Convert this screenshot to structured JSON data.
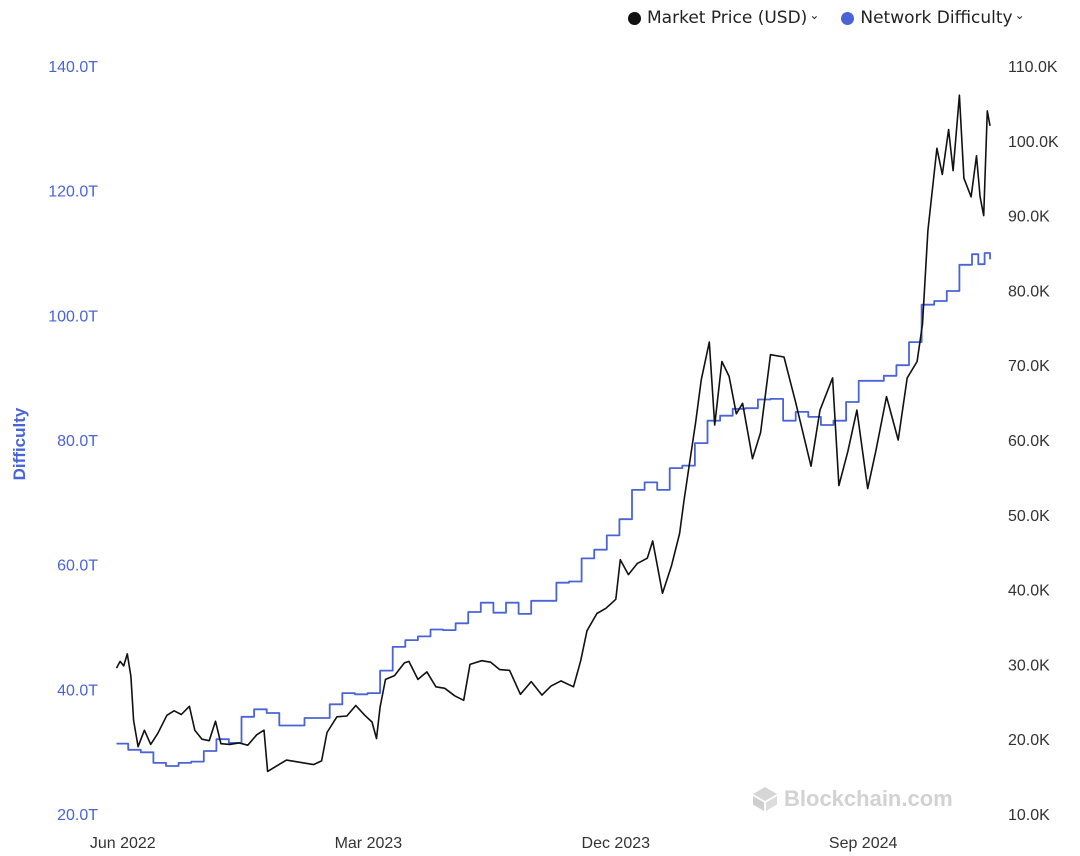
{
  "legend": {
    "price_label": "Market Price (USD)",
    "difficulty_label": "Network Difficulty",
    "chevron": "⌄"
  },
  "watermark": {
    "text": "Blockchain.com",
    "icon": "blockchain-logo-icon"
  },
  "colors": {
    "difficulty": "#4a64d8",
    "price": "#111111",
    "grid": "#ffffff",
    "left_axis_text": "#4a64d8",
    "right_axis_text": "#333333"
  },
  "chart_data": {
    "type": "line",
    "title": "",
    "xlabel": "",
    "ylabel": "Difficulty",
    "ylabel_right": "",
    "x_ticks": [
      "Jun 2022",
      "Mar 2023",
      "Dec 2023",
      "Sep 2024"
    ],
    "x_tick_dates": [
      "2022-06-01",
      "2023-03-01",
      "2023-12-01",
      "2024-09-01"
    ],
    "x_range": [
      "2022-05-20",
      "2025-01-20"
    ],
    "y_left": {
      "ticks": [
        "20.0T",
        "40.0T",
        "60.0T",
        "80.0T",
        "100.0T",
        "120.0T",
        "140.0T"
      ],
      "range": [
        20,
        140
      ],
      "unit": "T"
    },
    "y_right": {
      "ticks": [
        "10.0K",
        "20.0K",
        "30.0K",
        "40.0K",
        "50.0K",
        "60.0K",
        "70.0K",
        "80.0K",
        "90.0K",
        "100.0K",
        "110.0K"
      ],
      "range": [
        10,
        110
      ],
      "unit": "K"
    },
    "legend_position": "top-right",
    "grid": false,
    "series": [
      {
        "name": "Network Difficulty",
        "axis": "left",
        "step": true,
        "points": [
          [
            "2022-05-25",
            31.3
          ],
          [
            "2022-06-07",
            30.3
          ],
          [
            "2022-06-21",
            29.9
          ],
          [
            "2022-07-05",
            28.2
          ],
          [
            "2022-07-19",
            27.7
          ],
          [
            "2022-08-02",
            28.2
          ],
          [
            "2022-08-16",
            28.4
          ],
          [
            "2022-08-30",
            30.1
          ],
          [
            "2022-09-13",
            32.0
          ],
          [
            "2022-09-27",
            31.4
          ],
          [
            "2022-10-11",
            35.6
          ],
          [
            "2022-10-25",
            36.8
          ],
          [
            "2022-11-08",
            36.2
          ],
          [
            "2022-11-22",
            34.2
          ],
          [
            "2022-12-06",
            34.2
          ],
          [
            "2022-12-20",
            35.4
          ],
          [
            "2023-01-03",
            35.4
          ],
          [
            "2023-01-17",
            37.6
          ],
          [
            "2023-01-31",
            39.4
          ],
          [
            "2023-02-14",
            39.2
          ],
          [
            "2023-02-28",
            39.4
          ],
          [
            "2023-03-14",
            43.0
          ],
          [
            "2023-03-28",
            46.8
          ],
          [
            "2023-04-11",
            47.9
          ],
          [
            "2023-04-25",
            48.5
          ],
          [
            "2023-05-09",
            49.6
          ],
          [
            "2023-05-23",
            49.5
          ],
          [
            "2023-06-06",
            50.6
          ],
          [
            "2023-06-20",
            52.4
          ],
          [
            "2023-07-04",
            53.9
          ],
          [
            "2023-07-18",
            52.3
          ],
          [
            "2023-08-01",
            53.9
          ],
          [
            "2023-08-15",
            52.1
          ],
          [
            "2023-08-29",
            54.2
          ],
          [
            "2023-09-12",
            54.2
          ],
          [
            "2023-09-26",
            57.1
          ],
          [
            "2023-10-10",
            57.3
          ],
          [
            "2023-10-24",
            61.0
          ],
          [
            "2023-11-07",
            62.4
          ],
          [
            "2023-11-21",
            64.7
          ],
          [
            "2023-12-05",
            67.3
          ],
          [
            "2023-12-19",
            72.0
          ],
          [
            "2024-01-02",
            73.2
          ],
          [
            "2024-01-16",
            72.0
          ],
          [
            "2024-01-30",
            75.5
          ],
          [
            "2024-02-13",
            75.9
          ],
          [
            "2024-02-27",
            79.5
          ],
          [
            "2024-03-12",
            83.1
          ],
          [
            "2024-03-26",
            83.9
          ],
          [
            "2024-04-09",
            85.0
          ],
          [
            "2024-04-23",
            85.1
          ],
          [
            "2024-05-07",
            86.5
          ],
          [
            "2024-05-21",
            86.6
          ],
          [
            "2024-06-04",
            83.1
          ],
          [
            "2024-06-18",
            84.5
          ],
          [
            "2024-07-02",
            83.7
          ],
          [
            "2024-07-16",
            82.4
          ],
          [
            "2024-07-30",
            83.1
          ],
          [
            "2024-08-13",
            86.1
          ],
          [
            "2024-08-27",
            89.5
          ],
          [
            "2024-09-10",
            89.5
          ],
          [
            "2024-09-24",
            90.3
          ],
          [
            "2024-10-08",
            92.0
          ],
          [
            "2024-10-22",
            95.7
          ],
          [
            "2024-11-05",
            101.7
          ],
          [
            "2024-11-19",
            102.3
          ],
          [
            "2024-12-03",
            103.9
          ],
          [
            "2024-12-17",
            108.1
          ],
          [
            "2024-12-31",
            109.8
          ],
          [
            "2025-01-07",
            108.2
          ],
          [
            "2025-01-14",
            110.0
          ],
          [
            "2025-01-20",
            109.0
          ]
        ]
      },
      {
        "name": "Market Price (USD)",
        "axis": "right",
        "step": false,
        "points": [
          [
            "2022-05-25",
            29.5
          ],
          [
            "2022-05-29",
            30.4
          ],
          [
            "2022-06-02",
            29.8
          ],
          [
            "2022-06-06",
            31.4
          ],
          [
            "2022-06-10",
            28.4
          ],
          [
            "2022-06-13",
            22.5
          ],
          [
            "2022-06-18",
            19.0
          ],
          [
            "2022-06-25",
            21.2
          ],
          [
            "2022-07-02",
            19.3
          ],
          [
            "2022-07-10",
            20.8
          ],
          [
            "2022-07-20",
            23.2
          ],
          [
            "2022-07-28",
            23.8
          ],
          [
            "2022-08-05",
            23.3
          ],
          [
            "2022-08-14",
            24.4
          ],
          [
            "2022-08-20",
            21.2
          ],
          [
            "2022-08-28",
            20.0
          ],
          [
            "2022-09-05",
            19.8
          ],
          [
            "2022-09-12",
            22.4
          ],
          [
            "2022-09-18",
            19.4
          ],
          [
            "2022-09-28",
            19.3
          ],
          [
            "2022-10-08",
            19.5
          ],
          [
            "2022-10-18",
            19.2
          ],
          [
            "2022-10-28",
            20.6
          ],
          [
            "2022-11-05",
            21.2
          ],
          [
            "2022-11-09",
            15.7
          ],
          [
            "2022-11-20",
            16.5
          ],
          [
            "2022-11-30",
            17.2
          ],
          [
            "2022-12-10",
            17.0
          ],
          [
            "2022-12-20",
            16.8
          ],
          [
            "2022-12-30",
            16.6
          ],
          [
            "2023-01-08",
            17.1
          ],
          [
            "2023-01-14",
            20.9
          ],
          [
            "2023-01-25",
            23.0
          ],
          [
            "2023-02-05",
            23.1
          ],
          [
            "2023-02-15",
            24.5
          ],
          [
            "2023-02-25",
            23.2
          ],
          [
            "2023-03-05",
            22.3
          ],
          [
            "2023-03-10",
            20.1
          ],
          [
            "2023-03-14",
            24.3
          ],
          [
            "2023-03-20",
            28.0
          ],
          [
            "2023-03-30",
            28.5
          ],
          [
            "2023-04-10",
            30.2
          ],
          [
            "2023-04-15",
            30.4
          ],
          [
            "2023-04-25",
            28.0
          ],
          [
            "2023-05-05",
            29.0
          ],
          [
            "2023-05-15",
            27.0
          ],
          [
            "2023-05-25",
            26.8
          ],
          [
            "2023-06-05",
            25.8
          ],
          [
            "2023-06-15",
            25.2
          ],
          [
            "2023-06-22",
            30.0
          ],
          [
            "2023-07-05",
            30.5
          ],
          [
            "2023-07-15",
            30.3
          ],
          [
            "2023-07-25",
            29.3
          ],
          [
            "2023-08-05",
            29.2
          ],
          [
            "2023-08-17",
            26.0
          ],
          [
            "2023-08-29",
            27.7
          ],
          [
            "2023-09-10",
            25.9
          ],
          [
            "2023-09-20",
            27.1
          ],
          [
            "2023-10-01",
            27.8
          ],
          [
            "2023-10-15",
            27.0
          ],
          [
            "2023-10-23",
            30.5
          ],
          [
            "2023-10-30",
            34.5
          ],
          [
            "2023-11-10",
            36.8
          ],
          [
            "2023-11-20",
            37.5
          ],
          [
            "2023-12-01",
            38.7
          ],
          [
            "2023-12-06",
            44.0
          ],
          [
            "2023-12-15",
            42.0
          ],
          [
            "2023-12-25",
            43.5
          ],
          [
            "2024-01-05",
            44.2
          ],
          [
            "2024-01-11",
            46.5
          ],
          [
            "2024-01-22",
            39.5
          ],
          [
            "2024-02-01",
            43.2
          ],
          [
            "2024-02-10",
            47.5
          ],
          [
            "2024-02-15",
            52.0
          ],
          [
            "2024-02-28",
            62.5
          ],
          [
            "2024-03-05",
            68.0
          ],
          [
            "2024-03-14",
            73.1
          ],
          [
            "2024-03-20",
            62.0
          ],
          [
            "2024-03-28",
            70.5
          ],
          [
            "2024-04-05",
            68.5
          ],
          [
            "2024-04-13",
            63.5
          ],
          [
            "2024-04-20",
            64.9
          ],
          [
            "2024-05-01",
            57.5
          ],
          [
            "2024-05-10",
            61.0
          ],
          [
            "2024-05-21",
            71.4
          ],
          [
            "2024-06-05",
            71.1
          ],
          [
            "2024-06-18",
            65.0
          ],
          [
            "2024-07-05",
            56.5
          ],
          [
            "2024-07-15",
            64.0
          ],
          [
            "2024-07-29",
            68.3
          ],
          [
            "2024-08-05",
            53.9
          ],
          [
            "2024-08-15",
            58.5
          ],
          [
            "2024-08-25",
            64.0
          ],
          [
            "2024-09-06",
            53.5
          ],
          [
            "2024-09-15",
            58.5
          ],
          [
            "2024-09-27",
            65.8
          ],
          [
            "2024-10-10",
            60.0
          ],
          [
            "2024-10-20",
            68.3
          ],
          [
            "2024-10-31",
            70.5
          ],
          [
            "2024-11-06",
            75.5
          ],
          [
            "2024-11-12",
            88.0
          ],
          [
            "2024-11-22",
            99.0
          ],
          [
            "2024-11-28",
            95.5
          ],
          [
            "2024-12-05",
            101.5
          ],
          [
            "2024-12-10",
            96.0
          ],
          [
            "2024-12-17",
            106.1
          ],
          [
            "2024-12-22",
            95.0
          ],
          [
            "2024-12-30",
            92.5
          ],
          [
            "2025-01-05",
            98.0
          ],
          [
            "2025-01-09",
            92.5
          ],
          [
            "2025-01-13",
            90.0
          ],
          [
            "2025-01-17",
            104.0
          ],
          [
            "2025-01-20",
            102.0
          ]
        ]
      }
    ]
  }
}
